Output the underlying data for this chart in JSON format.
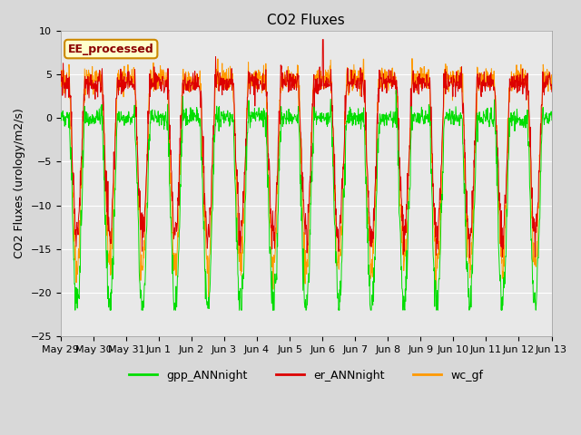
{
  "title": "CO2 Fluxes",
  "ylabel": "CO2 Fluxes (urology/m2/s)",
  "ylim": [
    -25,
    10
  ],
  "yticks": [
    -25,
    -20,
    -15,
    -10,
    -5,
    0,
    5,
    10
  ],
  "x_tick_labels": [
    "May 29",
    "May 30",
    "May 31",
    "Jun 1",
    "Jun 2",
    "Jun 3",
    "Jun 4",
    "Jun 5",
    "Jun 6",
    "Jun 7",
    "Jun 8",
    "Jun 9",
    "Jun 10",
    "Jun 11",
    "Jun 12",
    "Jun 13"
  ],
  "num_points": 1440,
  "color_gpp": "#00dd00",
  "color_er": "#dd0000",
  "color_wc": "#ff9900",
  "legend_labels": [
    "gpp_ANNnight",
    "er_ANNnight",
    "wc_gf"
  ],
  "annotation_text": "EE_processed",
  "annotation_bg": "#ffffcc",
  "annotation_border": "#cc8800",
  "plot_bg": "#e8e8e8",
  "grid_color": "#ffffff",
  "title_fontsize": 11,
  "label_fontsize": 9,
  "tick_fontsize": 8,
  "seed": 12345
}
